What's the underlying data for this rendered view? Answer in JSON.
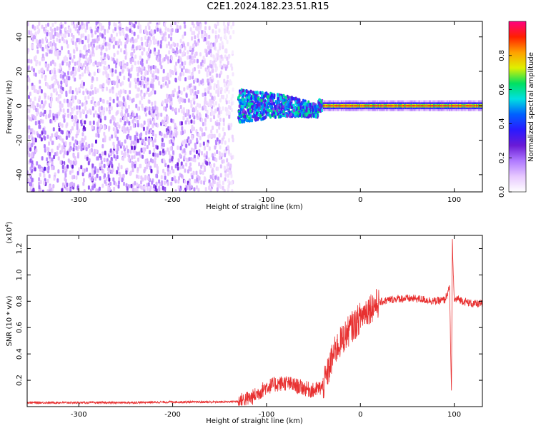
{
  "title": "C2E1.2024.182.23.51.R15",
  "chart_data": [
    {
      "type": "heatmap",
      "xlabel": "Height of straight line (km)",
      "ylabel": "Frequency (Hz)",
      "xlim": [
        -355,
        130
      ],
      "ylim": [
        -50,
        49
      ],
      "x_ticks": [
        -300,
        -200,
        -100,
        0,
        100
      ],
      "x_tick_labels": [
        "-300",
        "-200",
        "-100",
        "0",
        "100"
      ],
      "y_ticks": [
        -40,
        -20,
        0,
        20,
        40
      ],
      "y_tick_labels": [
        "-40",
        "-20",
        "0",
        "20",
        "40"
      ],
      "colorbar": {
        "label": "Normalized spectral amplitude",
        "range": [
          0.0,
          1.0
        ],
        "ticks": [
          0.0,
          0.2,
          0.4,
          0.6,
          0.8
        ],
        "tick_labels": [
          "0.0",
          "0.2",
          "0.4",
          "0.6",
          "0.8"
        ],
        "colormap": [
          "#ffffff",
          "#e7c8ff",
          "#b07aff",
          "#6a1bd6",
          "#2a1aff",
          "#0060ff",
          "#00e0e0",
          "#00e060",
          "#e0f000",
          "#ffa000",
          "#ff2000",
          "#ff0080"
        ]
      },
      "features": [
        {
          "region": "noise",
          "x_range": [
            -355,
            -135
          ],
          "freq_range": [
            -50,
            49
          ],
          "amplitude": 0.15
        },
        {
          "region": "transition",
          "x_range": [
            -130,
            -40
          ],
          "freq_center": 0,
          "freq_halfwidth": 8,
          "amplitude": 0.45
        },
        {
          "region": "carrier",
          "x_range": [
            -40,
            130
          ],
          "freq_center": 0,
          "freq_halfwidth": 2,
          "amplitude": 0.9
        }
      ]
    },
    {
      "type": "line",
      "xlabel": "Height of straight line (km)",
      "ylabel": "SNR (10 * v/v)",
      "y_multiplier": "(x10",
      "y_multiplier_exp": "4",
      "y_multiplier_close": ")",
      "xlim": [
        -355,
        130
      ],
      "ylim": [
        0,
        1.3
      ],
      "x_ticks": [
        -300,
        -200,
        -100,
        0,
        100
      ],
      "x_tick_labels": [
        "-300",
        "-200",
        "-100",
        "0",
        "100"
      ],
      "y_ticks": [
        0.2,
        0.4,
        0.6,
        0.8,
        1.0,
        1.2
      ],
      "y_tick_labels": [
        "0.2",
        "0.4",
        "0.6",
        "0.8",
        "1.0",
        "1.2"
      ],
      "color": "#e83030",
      "x": [
        -355,
        -300,
        -250,
        -200,
        -150,
        -130,
        -115,
        -100,
        -90,
        -80,
        -70,
        -60,
        -50,
        -40,
        -35,
        -30,
        -25,
        -20,
        -15,
        -10,
        -5,
        0,
        5,
        10,
        15,
        20,
        25,
        30,
        40,
        50,
        60,
        70,
        80,
        90,
        95,
        97,
        98,
        100,
        103,
        110,
        120,
        130
      ],
      "y": [
        0.03,
        0.03,
        0.03,
        0.035,
        0.035,
        0.04,
        0.07,
        0.15,
        0.17,
        0.18,
        0.16,
        0.14,
        0.12,
        0.15,
        0.25,
        0.37,
        0.45,
        0.5,
        0.55,
        0.6,
        0.63,
        0.68,
        0.72,
        0.75,
        0.77,
        0.79,
        0.8,
        0.81,
        0.82,
        0.82,
        0.82,
        0.81,
        0.8,
        0.81,
        0.9,
        0.1,
        1.25,
        0.8,
        0.82,
        0.8,
        0.78,
        0.78
      ]
    }
  ]
}
